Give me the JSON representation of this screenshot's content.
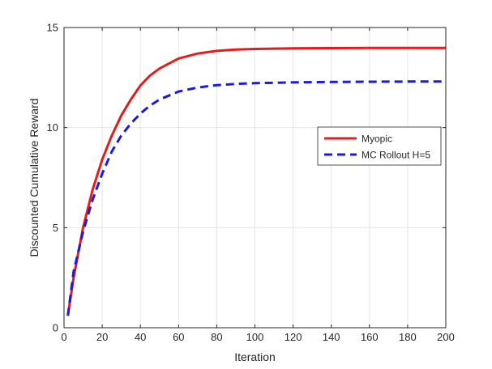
{
  "chart_data": {
    "type": "line",
    "title": "",
    "xlabel": "Iteration",
    "ylabel": "Discounted Cumulative Reward",
    "xlim": [
      0,
      200
    ],
    "ylim": [
      0,
      15
    ],
    "xticks": [
      0,
      20,
      40,
      60,
      80,
      100,
      120,
      140,
      160,
      180,
      200
    ],
    "yticks": [
      0,
      5,
      10,
      15
    ],
    "grid": true,
    "legend_position": "right",
    "series": [
      {
        "name": "Myopic",
        "color": "#e51c1c",
        "style": "solid",
        "x": [
          2,
          5,
          10,
          15,
          20,
          25,
          30,
          35,
          40,
          45,
          50,
          60,
          70,
          80,
          90,
          100,
          120,
          140,
          160,
          180,
          200
        ],
        "y": [
          0.6,
          2.5,
          5.0,
          6.9,
          8.4,
          9.6,
          10.6,
          11.4,
          12.1,
          12.6,
          12.95,
          13.45,
          13.7,
          13.83,
          13.9,
          13.93,
          13.96,
          13.97,
          13.98,
          13.98,
          13.98
        ]
      },
      {
        "name": "MC Rollout H=5",
        "color": "#1a1ae5",
        "style": "dashed",
        "x": [
          2,
          5,
          10,
          15,
          20,
          25,
          30,
          35,
          40,
          45,
          50,
          60,
          70,
          80,
          90,
          100,
          120,
          140,
          160,
          180,
          200
        ],
        "y": [
          0.6,
          2.8,
          4.8,
          6.4,
          7.7,
          8.8,
          9.6,
          10.2,
          10.7,
          11.1,
          11.4,
          11.8,
          12.0,
          12.12,
          12.18,
          12.22,
          12.26,
          12.28,
          12.29,
          12.3,
          12.3
        ]
      }
    ]
  }
}
